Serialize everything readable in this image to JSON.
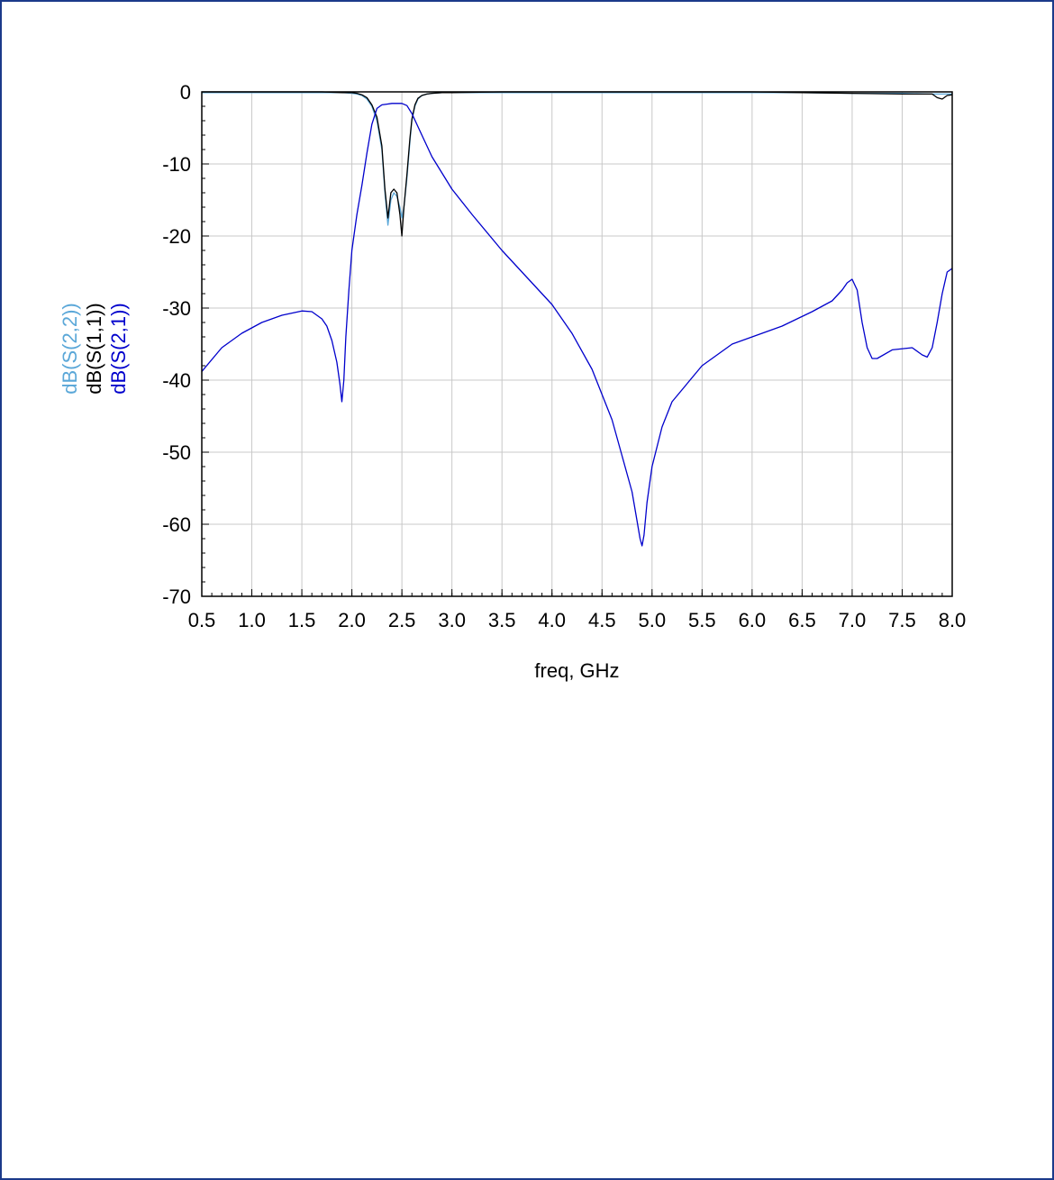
{
  "chart_data": {
    "type": "line",
    "xlabel": "freq, GHz",
    "xlim": [
      0.5,
      8.0
    ],
    "ylim": [
      -70,
      0
    ],
    "x_ticks": [
      "0.5",
      "1.0",
      "1.5",
      "2.0",
      "2.5",
      "3.0",
      "3.5",
      "4.0",
      "4.5",
      "5.0",
      "5.5",
      "6.0",
      "6.5",
      "7.0",
      "7.5",
      "8.0"
    ],
    "y_ticks": [
      "0",
      "-10",
      "-20",
      "-30",
      "-40",
      "-50",
      "-60",
      "-70"
    ],
    "grid": true,
    "legend_placement": "left-vertical",
    "series": [
      {
        "name": "dB(S(2,2))",
        "color": "#5aa7d8",
        "x": [
          0.5,
          1.0,
          1.5,
          1.7,
          1.9,
          2.0,
          2.05,
          2.1,
          2.15,
          2.2,
          2.25,
          2.3,
          2.33,
          2.36,
          2.39,
          2.42,
          2.45,
          2.48,
          2.5,
          2.52,
          2.55,
          2.58,
          2.6,
          2.63,
          2.66,
          2.7,
          2.75,
          2.8,
          2.9,
          3.0,
          3.5,
          4.0,
          4.5,
          5.0,
          5.5,
          6.0,
          6.5,
          7.0,
          7.5,
          7.8,
          8.0
        ],
        "values": [
          -0.1,
          -0.1,
          -0.1,
          -0.1,
          -0.1,
          -0.2,
          -0.3,
          -0.5,
          -1.0,
          -2.0,
          -4.0,
          -8.0,
          -14.0,
          -18.5,
          -15.0,
          -14.0,
          -14.5,
          -16.0,
          -17.5,
          -16.0,
          -12.0,
          -7.0,
          -4.0,
          -2.0,
          -1.0,
          -0.5,
          -0.3,
          -0.2,
          -0.1,
          -0.1,
          -0.1,
          -0.1,
          -0.1,
          -0.1,
          -0.1,
          -0.1,
          -0.1,
          -0.2,
          -0.2,
          -0.3,
          -0.3
        ]
      },
      {
        "name": "dB(S(1,1))",
        "color": "#000000",
        "x": [
          0.5,
          1.0,
          1.5,
          1.7,
          1.9,
          2.0,
          2.05,
          2.1,
          2.15,
          2.2,
          2.25,
          2.3,
          2.33,
          2.36,
          2.39,
          2.42,
          2.45,
          2.48,
          2.5,
          2.52,
          2.55,
          2.58,
          2.6,
          2.63,
          2.66,
          2.7,
          2.75,
          2.8,
          2.9,
          3.0,
          3.5,
          4.0,
          4.5,
          5.0,
          5.5,
          6.0,
          6.5,
          7.0,
          7.5,
          7.8,
          7.85,
          7.9,
          7.95,
          8.0
        ],
        "values": [
          0.0,
          0.0,
          0.0,
          0.0,
          -0.1,
          -0.1,
          -0.2,
          -0.4,
          -0.8,
          -1.8,
          -3.5,
          -7.5,
          -13.5,
          -17.5,
          -14.0,
          -13.5,
          -14.0,
          -17.0,
          -20.0,
          -16.0,
          -11.5,
          -6.5,
          -3.8,
          -1.8,
          -0.9,
          -0.5,
          -0.3,
          -0.2,
          -0.1,
          -0.1,
          0.0,
          0.0,
          0.0,
          0.0,
          0.0,
          0.0,
          -0.1,
          -0.2,
          -0.3,
          -0.3,
          -0.8,
          -1.0,
          -0.5,
          -0.4
        ]
      },
      {
        "name": "dB(S(2,1))",
        "color": "#0000cc",
        "x": [
          0.5,
          0.7,
          0.9,
          1.1,
          1.3,
          1.5,
          1.6,
          1.7,
          1.75,
          1.8,
          1.85,
          1.88,
          1.9,
          1.92,
          1.94,
          1.97,
          2.0,
          2.05,
          2.1,
          2.15,
          2.2,
          2.25,
          2.3,
          2.35,
          2.4,
          2.5,
          2.55,
          2.6,
          2.7,
          2.8,
          3.0,
          3.2,
          3.5,
          3.8,
          4.0,
          4.2,
          4.4,
          4.6,
          4.7,
          4.8,
          4.85,
          4.88,
          4.9,
          4.92,
          4.95,
          5.0,
          5.1,
          5.2,
          5.5,
          5.8,
          6.0,
          6.3,
          6.6,
          6.8,
          6.9,
          6.95,
          7.0,
          7.05,
          7.1,
          7.15,
          7.2,
          7.25,
          7.4,
          7.6,
          7.7,
          7.75,
          7.8,
          7.85,
          7.9,
          7.95,
          8.0
        ],
        "values": [
          -38.8,
          -35.5,
          -33.5,
          -32.0,
          -31.0,
          -30.4,
          -30.5,
          -31.5,
          -32.5,
          -34.5,
          -37.5,
          -40.5,
          -43.0,
          -40.0,
          -34.0,
          -27.5,
          -22.0,
          -17.0,
          -13.0,
          -8.5,
          -4.5,
          -2.3,
          -1.8,
          -1.7,
          -1.6,
          -1.6,
          -1.9,
          -3.0,
          -6.0,
          -9.0,
          -13.5,
          -17.0,
          -22.0,
          -26.5,
          -29.5,
          -33.5,
          -38.5,
          -45.5,
          -50.5,
          -55.5,
          -59.5,
          -62.0,
          -63.0,
          -61.5,
          -57.0,
          -52.0,
          -46.5,
          -43.0,
          -38.0,
          -35.0,
          -34.0,
          -32.5,
          -30.5,
          -29.0,
          -27.5,
          -26.5,
          -26.0,
          -27.5,
          -32.0,
          -35.5,
          -37.0,
          -37.0,
          -35.8,
          -35.5,
          -36.5,
          -36.8,
          -35.5,
          -32.0,
          -28.0,
          -25.0,
          -24.5
        ]
      }
    ]
  }
}
